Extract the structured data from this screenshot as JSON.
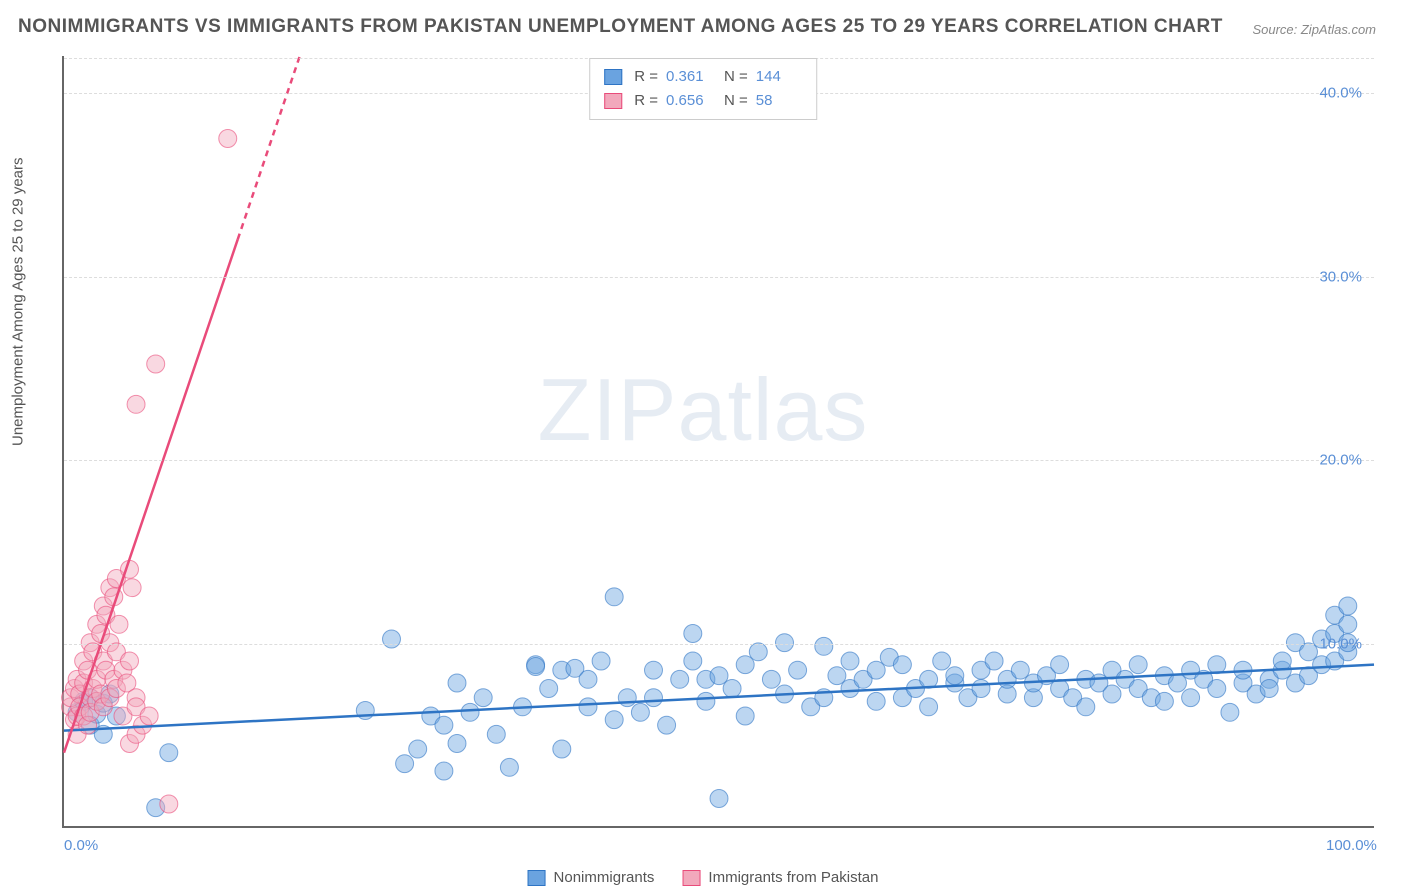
{
  "title": "NONIMMIGRANTS VS IMMIGRANTS FROM PAKISTAN UNEMPLOYMENT AMONG AGES 25 TO 29 YEARS CORRELATION CHART",
  "source": "Source: ZipAtlas.com",
  "y_axis_label": "Unemployment Among Ages 25 to 29 years",
  "watermark": {
    "bold": "ZIP",
    "light": "atlas"
  },
  "chart": {
    "type": "scatter",
    "xlim": [
      0,
      100
    ],
    "ylim": [
      0,
      42
    ],
    "x_ticks": [
      {
        "v": 0,
        "l": "0.0%"
      },
      {
        "v": 100,
        "l": "100.0%"
      }
    ],
    "y_ticks": [
      {
        "v": 10,
        "l": "10.0%"
      },
      {
        "v": 20,
        "l": "20.0%"
      },
      {
        "v": 30,
        "l": "30.0%"
      },
      {
        "v": 40,
        "l": "40.0%"
      }
    ],
    "grid_color": "#dddddd",
    "background_color": "#ffffff",
    "axis_color": "#666666",
    "tick_label_color": "#5a8fd6",
    "marker_radius": 9,
    "marker_opacity": 0.45,
    "trend_line_width": 2.5
  },
  "series": {
    "blue": {
      "label": "Nonimmigrants",
      "color": "#6aa3e0",
      "line_color": "#2e74c4",
      "stats": {
        "R": "0.361",
        "N": "144"
      },
      "trend": {
        "x1": 0,
        "y1": 5.2,
        "x2": 100,
        "y2": 8.8
      },
      "points": [
        [
          1,
          6.2
        ],
        [
          1.5,
          6.8
        ],
        [
          2,
          5.5
        ],
        [
          2,
          7.0
        ],
        [
          2.5,
          6.1
        ],
        [
          3,
          6.7
        ],
        [
          3,
          5.0
        ],
        [
          3.5,
          7.2
        ],
        [
          4,
          6.0
        ],
        [
          7,
          1.0
        ],
        [
          8,
          4.0
        ],
        [
          23,
          6.3
        ],
        [
          25,
          10.2
        ],
        [
          26,
          3.4
        ],
        [
          27,
          4.2
        ],
        [
          28,
          6.0
        ],
        [
          29,
          5.5
        ],
        [
          29,
          3.0
        ],
        [
          30,
          7.8
        ],
        [
          30,
          4.5
        ],
        [
          31,
          6.2
        ],
        [
          32,
          7.0
        ],
        [
          33,
          5.0
        ],
        [
          34,
          3.2
        ],
        [
          35,
          6.5
        ],
        [
          36,
          8.8
        ],
        [
          36,
          8.7
        ],
        [
          37,
          7.5
        ],
        [
          38,
          4.2
        ],
        [
          38,
          8.5
        ],
        [
          39,
          8.6
        ],
        [
          40,
          6.5
        ],
        [
          40,
          8.0
        ],
        [
          41,
          9.0
        ],
        [
          42,
          5.8
        ],
        [
          42,
          12.5
        ],
        [
          43,
          7.0
        ],
        [
          44,
          6.2
        ],
        [
          45,
          8.5
        ],
        [
          45,
          7.0
        ],
        [
          46,
          5.5
        ],
        [
          47,
          8.0
        ],
        [
          48,
          10.5
        ],
        [
          48,
          9.0
        ],
        [
          49,
          6.8
        ],
        [
          49,
          8.0
        ],
        [
          50,
          8.2
        ],
        [
          50,
          1.5
        ],
        [
          51,
          7.5
        ],
        [
          52,
          8.8
        ],
        [
          52,
          6.0
        ],
        [
          53,
          9.5
        ],
        [
          54,
          8.0
        ],
        [
          55,
          7.2
        ],
        [
          55,
          10.0
        ],
        [
          56,
          8.5
        ],
        [
          57,
          6.5
        ],
        [
          58,
          9.8
        ],
        [
          58,
          7.0
        ],
        [
          59,
          8.2
        ],
        [
          60,
          7.5
        ],
        [
          60,
          9.0
        ],
        [
          61,
          8.0
        ],
        [
          62,
          6.8
        ],
        [
          62,
          8.5
        ],
        [
          63,
          9.2
        ],
        [
          64,
          7.0
        ],
        [
          64,
          8.8
        ],
        [
          65,
          7.5
        ],
        [
          66,
          8.0
        ],
        [
          66,
          6.5
        ],
        [
          67,
          9.0
        ],
        [
          68,
          7.8
        ],
        [
          68,
          8.2
        ],
        [
          69,
          7.0
        ],
        [
          70,
          8.5
        ],
        [
          70,
          7.5
        ],
        [
          71,
          9.0
        ],
        [
          72,
          7.2
        ],
        [
          72,
          8.0
        ],
        [
          73,
          8.5
        ],
        [
          74,
          7.0
        ],
        [
          74,
          7.8
        ],
        [
          75,
          8.2
        ],
        [
          76,
          7.5
        ],
        [
          76,
          8.8
        ],
        [
          77,
          7.0
        ],
        [
          78,
          8.0
        ],
        [
          78,
          6.5
        ],
        [
          79,
          7.8
        ],
        [
          80,
          8.5
        ],
        [
          80,
          7.2
        ],
        [
          81,
          8.0
        ],
        [
          82,
          7.5
        ],
        [
          82,
          8.8
        ],
        [
          83,
          7.0
        ],
        [
          84,
          8.2
        ],
        [
          84,
          6.8
        ],
        [
          85,
          7.8
        ],
        [
          86,
          8.5
        ],
        [
          86,
          7.0
        ],
        [
          87,
          8.0
        ],
        [
          88,
          7.5
        ],
        [
          88,
          8.8
        ],
        [
          89,
          6.2
        ],
        [
          90,
          7.8
        ],
        [
          90,
          8.5
        ],
        [
          91,
          7.2
        ],
        [
          92,
          8.0
        ],
        [
          92,
          7.5
        ],
        [
          93,
          8.5
        ],
        [
          93,
          9.0
        ],
        [
          94,
          7.8
        ],
        [
          94,
          10.0
        ],
        [
          95,
          8.2
        ],
        [
          95,
          9.5
        ],
        [
          96,
          8.8
        ],
        [
          96,
          10.2
        ],
        [
          97,
          9.0
        ],
        [
          97,
          10.5
        ],
        [
          97,
          11.5
        ],
        [
          98,
          9.5
        ],
        [
          98,
          10.0
        ],
        [
          98,
          11.0
        ],
        [
          98,
          12.0
        ]
      ]
    },
    "pink": {
      "label": "Immigrants from Pakistan",
      "color": "#f2a8bc",
      "line_color": "#e94b7a",
      "stats": {
        "R": "0.656",
        "N": "58"
      },
      "trend": {
        "x1": 0,
        "y1": 4.0,
        "x2": 18,
        "y2": 42
      },
      "trend_dash_after_y": 32,
      "points": [
        [
          0.5,
          6.5
        ],
        [
          0.5,
          7.0
        ],
        [
          0.8,
          5.8
        ],
        [
          0.8,
          7.5
        ],
        [
          1.0,
          6.0
        ],
        [
          1.0,
          8.0
        ],
        [
          1.0,
          5.0
        ],
        [
          1.2,
          7.2
        ],
        [
          1.2,
          6.5
        ],
        [
          1.5,
          9.0
        ],
        [
          1.5,
          6.0
        ],
        [
          1.5,
          7.8
        ],
        [
          1.8,
          5.5
        ],
        [
          1.8,
          8.5
        ],
        [
          2.0,
          7.0
        ],
        [
          2.0,
          10.0
        ],
        [
          2.0,
          6.2
        ],
        [
          2.2,
          9.5
        ],
        [
          2.2,
          7.5
        ],
        [
          2.5,
          8.0
        ],
        [
          2.5,
          11.0
        ],
        [
          2.5,
          6.8
        ],
        [
          2.8,
          10.5
        ],
        [
          2.8,
          7.2
        ],
        [
          3.0,
          9.0
        ],
        [
          3.0,
          12.0
        ],
        [
          3.0,
          6.5
        ],
        [
          3.2,
          8.5
        ],
        [
          3.2,
          11.5
        ],
        [
          3.5,
          7.0
        ],
        [
          3.5,
          10.0
        ],
        [
          3.5,
          13.0
        ],
        [
          3.8,
          8.0
        ],
        [
          3.8,
          12.5
        ],
        [
          4.0,
          9.5
        ],
        [
          4.0,
          7.5
        ],
        [
          4.0,
          13.5
        ],
        [
          4.2,
          11.0
        ],
        [
          4.5,
          8.5
        ],
        [
          4.5,
          6.0
        ],
        [
          4.8,
          7.8
        ],
        [
          5.0,
          14.0
        ],
        [
          5.0,
          9.0
        ],
        [
          5.2,
          13.0
        ],
        [
          5.5,
          7.0
        ],
        [
          5.5,
          6.5
        ],
        [
          5.0,
          4.5
        ],
        [
          5.5,
          5.0
        ],
        [
          6.0,
          5.5
        ],
        [
          6.5,
          6.0
        ],
        [
          5.5,
          23.0
        ],
        [
          7.0,
          25.2
        ],
        [
          8.0,
          1.2
        ],
        [
          12.5,
          37.5
        ]
      ]
    }
  },
  "stats_box_labels": {
    "R": "R =",
    "N": "N ="
  }
}
